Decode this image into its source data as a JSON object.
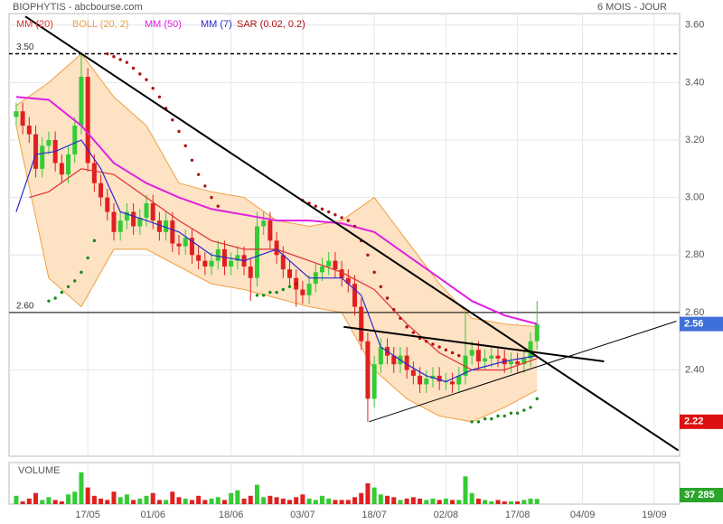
{
  "chart_data": {
    "type": "candlestick",
    "title": "BIOPHYTIS - abcbourse.com",
    "subtitle": "6 MOIS - JOUR",
    "xlim": [
      -1.1,
      101.9
    ],
    "xticks": [
      {
        "value": 11,
        "label": "17/05"
      },
      {
        "value": 21,
        "label": "01/06"
      },
      {
        "value": 33,
        "label": "18/06"
      },
      {
        "value": 44,
        "label": "03/07"
      },
      {
        "value": 55,
        "label": "18/07"
      },
      {
        "value": 66,
        "label": "02/08"
      },
      {
        "value": 77,
        "label": "17/08"
      },
      {
        "value": 87,
        "label": "04/09"
      },
      {
        "value": 98,
        "label": "19/09"
      }
    ],
    "ylim": [
      2.1,
      3.64
    ],
    "yticks": [
      {
        "value": 2.4,
        "label": "2.40"
      },
      {
        "value": 2.6,
        "label": "2.60"
      },
      {
        "value": 2.8,
        "label": "2.80"
      },
      {
        "value": 3.0,
        "label": "3.00"
      },
      {
        "value": 3.2,
        "label": "3.20"
      },
      {
        "value": 3.4,
        "label": "3.40"
      },
      {
        "value": 3.6,
        "label": "3.60"
      }
    ],
    "grid": true,
    "up_color": "#33cc33",
    "down_color": "#e02020",
    "open": [
      3.28,
      3.3,
      3.25,
      3.22,
      3.1,
      3.18,
      3.2,
      3.12,
      3.08,
      3.15,
      3.25,
      3.42,
      3.12,
      3.05,
      3.0,
      2.95,
      2.88,
      2.92,
      2.95,
      2.9,
      2.93,
      2.98,
      2.92,
      2.88,
      2.92,
      2.84,
      2.83,
      2.86,
      2.8,
      2.78,
      2.76,
      2.78,
      2.82,
      2.76,
      2.78,
      2.8,
      2.76,
      2.72,
      2.9,
      2.92,
      2.85,
      2.8,
      2.75,
      2.72,
      2.68,
      2.66,
      2.7,
      2.74,
      2.76,
      2.78,
      2.75,
      2.72,
      2.7,
      2.62,
      2.5,
      2.3,
      2.42,
      2.48,
      2.45,
      2.42,
      2.45,
      2.4,
      2.38,
      2.35,
      2.37,
      2.38,
      2.36,
      2.36,
      2.35,
      2.38,
      2.45,
      2.47,
      2.43,
      2.44,
      2.45,
      2.44,
      2.42,
      2.43,
      2.42,
      2.44,
      2.5
    ],
    "high": [
      3.33,
      3.33,
      3.28,
      3.25,
      3.21,
      3.23,
      3.23,
      3.15,
      3.18,
      3.28,
      3.5,
      3.45,
      3.15,
      3.08,
      3.03,
      2.98,
      2.95,
      2.98,
      2.98,
      2.96,
      3.01,
      3.01,
      2.95,
      2.95,
      2.95,
      2.87,
      2.89,
      2.89,
      2.83,
      2.81,
      2.81,
      2.85,
      2.85,
      2.81,
      2.83,
      2.83,
      2.79,
      2.95,
      2.95,
      2.95,
      2.88,
      2.83,
      2.78,
      2.75,
      2.71,
      2.73,
      2.77,
      2.79,
      2.81,
      2.81,
      2.78,
      2.75,
      2.73,
      2.65,
      2.53,
      2.45,
      2.51,
      2.51,
      2.48,
      2.48,
      2.48,
      2.43,
      2.41,
      2.4,
      2.41,
      2.41,
      2.39,
      2.39,
      2.41,
      2.6,
      2.5,
      2.5,
      2.47,
      2.48,
      2.48,
      2.47,
      2.46,
      2.46,
      2.47,
      2.53,
      2.64
    ],
    "low": [
      3.25,
      3.22,
      3.19,
      3.07,
      3.07,
      3.15,
      3.09,
      3.05,
      3.05,
      3.12,
      3.22,
      3.09,
      3.02,
      2.97,
      2.92,
      2.85,
      2.85,
      2.89,
      2.87,
      2.87,
      2.9,
      2.89,
      2.85,
      2.85,
      2.81,
      2.8,
      2.8,
      2.77,
      2.75,
      2.73,
      2.73,
      2.75,
      2.73,
      2.73,
      2.75,
      2.73,
      2.64,
      2.69,
      2.87,
      2.82,
      2.77,
      2.72,
      2.69,
      2.62,
      2.63,
      2.63,
      2.67,
      2.71,
      2.73,
      2.72,
      2.69,
      2.67,
      2.59,
      2.47,
      2.22,
      2.27,
      2.39,
      2.42,
      2.39,
      2.39,
      2.37,
      2.35,
      2.32,
      2.32,
      2.34,
      2.33,
      2.33,
      2.32,
      2.32,
      2.35,
      2.42,
      2.4,
      2.4,
      2.41,
      2.41,
      2.39,
      2.39,
      2.39,
      2.39,
      2.41,
      2.47
    ],
    "close": [
      3.3,
      3.25,
      3.22,
      3.1,
      3.18,
      3.2,
      3.12,
      3.08,
      3.15,
      3.25,
      3.42,
      3.12,
      3.05,
      3.0,
      2.95,
      2.88,
      2.92,
      2.95,
      2.9,
      2.93,
      2.98,
      2.92,
      2.88,
      2.92,
      2.84,
      2.83,
      2.86,
      2.8,
      2.78,
      2.76,
      2.78,
      2.82,
      2.76,
      2.78,
      2.8,
      2.76,
      2.72,
      2.9,
      2.92,
      2.85,
      2.8,
      2.75,
      2.72,
      2.68,
      2.66,
      2.7,
      2.74,
      2.76,
      2.78,
      2.75,
      2.72,
      2.7,
      2.62,
      2.5,
      2.3,
      2.42,
      2.48,
      2.45,
      2.42,
      2.45,
      2.4,
      2.38,
      2.35,
      2.37,
      2.38,
      2.36,
      2.36,
      2.35,
      2.38,
      2.45,
      2.47,
      2.43,
      2.44,
      2.45,
      2.44,
      2.42,
      2.43,
      2.42,
      2.44,
      2.5,
      2.56
    ],
    "indicators": [
      {
        "name": "MM (20)",
        "type": "line",
        "color": "#e03030",
        "x": [
          2,
          5,
          10,
          15,
          20,
          25,
          30,
          35,
          40,
          45,
          50,
          55,
          60,
          65,
          70,
          75,
          80
        ],
        "values": [
          3.0,
          3.02,
          3.1,
          3.08,
          3.0,
          2.92,
          2.85,
          2.82,
          2.82,
          2.78,
          2.74,
          2.68,
          2.56,
          2.46,
          2.4,
          2.4,
          2.44
        ]
      },
      {
        "name": "BOLL (20, 2)",
        "type": "band",
        "color": "#f0a040",
        "fill": "#fde2c4",
        "x": [
          0,
          5,
          10,
          15,
          20,
          25,
          30,
          35,
          40,
          45,
          50,
          55,
          60,
          65,
          70,
          75,
          80
        ],
        "upper": [
          3.32,
          3.4,
          3.5,
          3.35,
          3.25,
          3.05,
          3.02,
          3.0,
          2.92,
          2.9,
          2.92,
          3.0,
          2.85,
          2.7,
          2.58,
          2.56,
          2.55
        ],
        "lower": [
          3.25,
          2.72,
          2.62,
          2.82,
          2.82,
          2.76,
          2.7,
          2.68,
          2.65,
          2.62,
          2.6,
          2.4,
          2.3,
          2.24,
          2.22,
          2.27,
          2.33
        ]
      },
      {
        "name": "MM (50)",
        "type": "line",
        "color": "#e020e0",
        "x": [
          0,
          5,
          10,
          15,
          20,
          25,
          30,
          35,
          40,
          45,
          50,
          55,
          60,
          65,
          70,
          75,
          80
        ],
        "values": [
          3.35,
          3.34,
          3.25,
          3.12,
          3.05,
          3.0,
          2.96,
          2.94,
          2.92,
          2.92,
          2.91,
          2.88,
          2.8,
          2.72,
          2.64,
          2.59,
          2.56
        ]
      },
      {
        "name": "MM (7)",
        "type": "line",
        "color": "#2a2ad0",
        "x": [
          0,
          3,
          6,
          10,
          13,
          16,
          20,
          25,
          30,
          35,
          40,
          45,
          50,
          53,
          56,
          60,
          63,
          66,
          70,
          75,
          80
        ],
        "values": [
          2.95,
          3.15,
          3.16,
          3.2,
          3.1,
          2.95,
          2.92,
          2.88,
          2.8,
          2.78,
          2.82,
          2.72,
          2.72,
          2.66,
          2.48,
          2.42,
          2.38,
          2.36,
          2.4,
          2.43,
          2.45
        ]
      },
      {
        "name": "SAR (0.02, 0.2)",
        "type": "dots",
        "color": "#b01010",
        "below_color": "#1a8a1a",
        "x": [
          5,
          6,
          7,
          8,
          9,
          10,
          11,
          12,
          14,
          15,
          16,
          17,
          18,
          19,
          20,
          21,
          22,
          23,
          24,
          25,
          26,
          27,
          28,
          29,
          30,
          31,
          37,
          38,
          39,
          40,
          41,
          42,
          43,
          44,
          45,
          46,
          47,
          48,
          49,
          50,
          51,
          52,
          53,
          54,
          55,
          56,
          57,
          58,
          59,
          60,
          61,
          62,
          63,
          64,
          65,
          66,
          67,
          68,
          70,
          71,
          72,
          73,
          74,
          75,
          76,
          77,
          78,
          79,
          80
        ],
        "values": [
          2.64,
          2.65,
          2.67,
          2.69,
          2.71,
          2.74,
          2.79,
          2.85,
          3.5,
          3.49,
          3.48,
          3.47,
          3.45,
          3.43,
          3.41,
          3.38,
          3.35,
          3.31,
          3.27,
          3.23,
          3.18,
          3.13,
          3.08,
          3.04,
          3.0,
          2.97,
          2.66,
          2.66,
          2.67,
          2.67,
          2.68,
          2.69,
          2.7,
          2.99,
          2.98,
          2.97,
          2.96,
          2.95,
          2.94,
          2.93,
          2.92,
          2.9,
          2.85,
          2.8,
          2.74,
          2.69,
          2.65,
          2.61,
          2.58,
          2.55,
          2.53,
          2.51,
          2.5,
          2.49,
          2.48,
          2.47,
          2.46,
          2.45,
          2.22,
          2.22,
          2.23,
          2.23,
          2.24,
          2.24,
          2.25,
          2.25,
          2.26,
          2.27,
          2.3
        ]
      }
    ],
    "hlines": [
      {
        "value": 3.5,
        "label": "3.50",
        "style": "dashed"
      },
      {
        "value": 2.6,
        "label": "2.60",
        "style": "solid"
      }
    ],
    "trendlines": [
      {
        "x": [
          1.4,
          101.7
        ],
        "values": [
          3.63,
          2.12
        ],
        "width": 2
      },
      {
        "x": [
          50.3,
          90.3
        ],
        "values": [
          2.55,
          2.43
        ],
        "width": 2
      },
      {
        "x": [
          54.2,
          101.4
        ],
        "values": [
          2.22,
          2.57
        ],
        "width": 1
      }
    ],
    "volume": {
      "name": "VOLUME",
      "vlim": [
        0,
        300000
      ],
      "last_value_label": "37 285",
      "values": [
        60000,
        20000,
        40000,
        80000,
        30000,
        50000,
        30000,
        20000,
        70000,
        90000,
        230000,
        120000,
        60000,
        40000,
        30000,
        90000,
        50000,
        70000,
        30000,
        40000,
        60000,
        80000,
        30000,
        30000,
        90000,
        50000,
        40000,
        30000,
        60000,
        30000,
        40000,
        50000,
        30000,
        80000,
        100000,
        40000,
        60000,
        140000,
        50000,
        60000,
        50000,
        40000,
        30000,
        50000,
        70000,
        40000,
        30000,
        60000,
        40000,
        30000,
        30000,
        30000,
        50000,
        80000,
        150000,
        120000,
        70000,
        60000,
        50000,
        30000,
        40000,
        50000,
        40000,
        30000,
        40000,
        30000,
        40000,
        30000,
        30000,
        200000,
        80000,
        40000,
        30000,
        20000,
        30000,
        20000,
        20000,
        20000,
        30000,
        40000,
        37285
      ]
    }
  }
}
